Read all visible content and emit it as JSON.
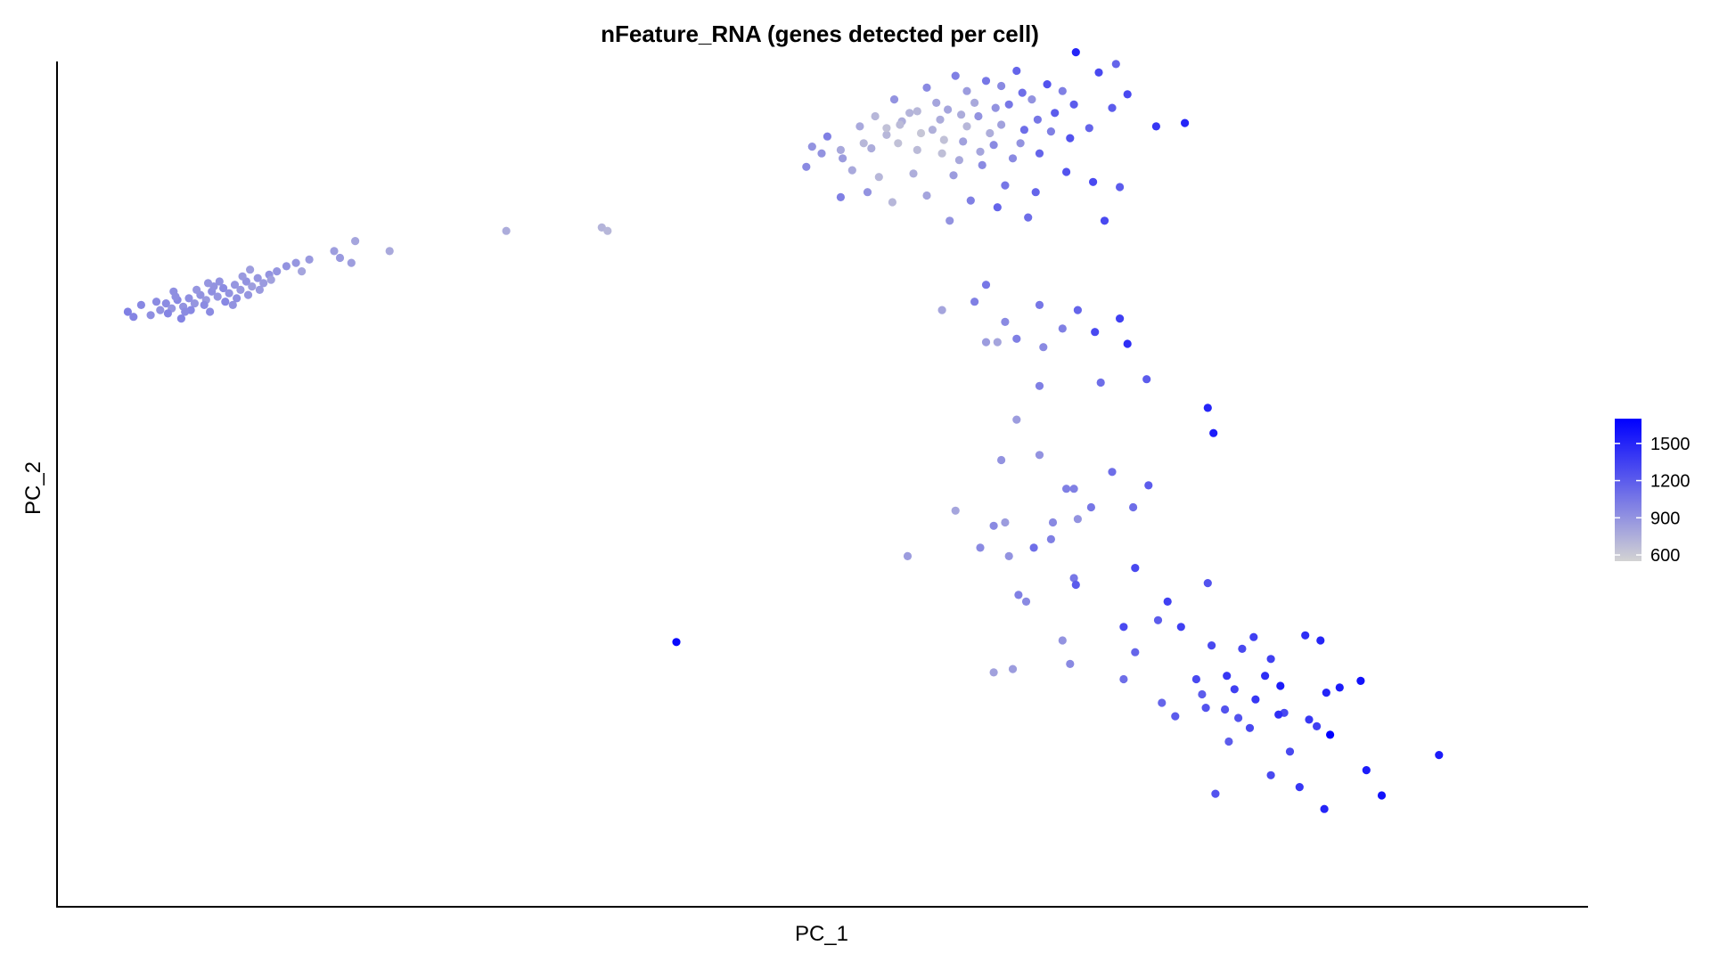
{
  "chart_data": {
    "type": "scatter",
    "title": "nFeature_RNA (genes detected per cell)",
    "xlabel": "PC_1",
    "ylabel": "PC_2",
    "xlim": [
      -30,
      50
    ],
    "ylim": [
      -30,
      20
    ],
    "grid": false,
    "legend": {
      "placement": "right",
      "ticks": [
        600,
        900,
        1200,
        1500
      ],
      "range": [
        550,
        1700
      ]
    },
    "colors": {
      "low": "#d3d3d3",
      "high": "#0000ff"
    },
    "points": [
      [
        -26.3,
        5.2,
        1000
      ],
      [
        -26.0,
        4.9,
        980
      ],
      [
        -25.6,
        5.6,
        960
      ],
      [
        -25.1,
        5.0,
        920
      ],
      [
        -24.6,
        5.3,
        900
      ],
      [
        -24.3,
        5.7,
        940
      ],
      [
        -24.0,
        5.4,
        880
      ],
      [
        -23.7,
        5.9,
        960
      ],
      [
        -23.4,
        5.5,
        900
      ],
      [
        -23.1,
        6.0,
        920
      ],
      [
        -22.8,
        5.7,
        880
      ],
      [
        -22.5,
        6.2,
        900
      ],
      [
        -22.2,
        5.9,
        860
      ],
      [
        -21.9,
        6.4,
        920
      ],
      [
        -21.6,
        6.1,
        880
      ],
      [
        -21.3,
        6.6,
        940
      ],
      [
        -21.0,
        6.3,
        900
      ],
      [
        -20.7,
        6.8,
        880
      ],
      [
        -20.4,
        6.5,
        860
      ],
      [
        -20.1,
        7.0,
        900
      ],
      [
        -19.8,
        6.7,
        840
      ],
      [
        -19.5,
        7.2,
        880
      ],
      [
        -19.2,
        6.9,
        860
      ],
      [
        -18.9,
        7.4,
        900
      ],
      [
        -24.8,
        5.8,
        940
      ],
      [
        -24.2,
        5.1,
        980
      ],
      [
        -23.8,
        6.1,
        920
      ],
      [
        -23.0,
        5.3,
        960
      ],
      [
        -22.3,
        5.6,
        940
      ],
      [
        -21.8,
        6.7,
        900
      ],
      [
        -21.2,
        5.8,
        960
      ],
      [
        -20.6,
        6.0,
        920
      ],
      [
        -20.0,
        6.2,
        880
      ],
      [
        -19.4,
        6.5,
        860
      ],
      [
        -23.5,
        4.8,
        980
      ],
      [
        -22.0,
        5.2,
        940
      ],
      [
        -22.7,
        6.5,
        880
      ],
      [
        -21.5,
        7.0,
        900
      ],
      [
        -20.3,
        7.3,
        860
      ],
      [
        -18.5,
        7.6,
        880
      ],
      [
        -18.0,
        7.9,
        900
      ],
      [
        -17.5,
        8.1,
        880
      ],
      [
        -17.2,
        7.6,
        800
      ],
      [
        -16.8,
        8.3,
        860
      ],
      [
        -15.5,
        8.8,
        840
      ],
      [
        -15.2,
        8.4,
        860
      ],
      [
        -14.6,
        8.1,
        840
      ],
      [
        -14.4,
        9.4,
        800
      ],
      [
        -12.6,
        8.8,
        780
      ],
      [
        -6.5,
        10.0,
        760
      ],
      [
        -1.5,
        10.2,
        720
      ],
      [
        -1.2,
        10.0,
        700
      ],
      [
        -23.9,
        6.4,
        920
      ],
      [
        -23.3,
        5.2,
        940
      ],
      [
        -22.1,
        6.9,
        880
      ],
      [
        -20.8,
        5.6,
        900
      ],
      [
        -19.9,
        7.7,
        840
      ],
      [
        -18.8,
        7.1,
        820
      ],
      [
        9.5,
        15.0,
        900
      ],
      [
        10.3,
        15.6,
        1000
      ],
      [
        11.1,
        14.3,
        850
      ],
      [
        12.0,
        16.2,
        780
      ],
      [
        12.6,
        14.9,
        760
      ],
      [
        13.4,
        15.7,
        700
      ],
      [
        14.2,
        16.5,
        750
      ],
      [
        15.0,
        14.8,
        680
      ],
      [
        15.8,
        16.0,
        740
      ],
      [
        16.6,
        17.2,
        800
      ],
      [
        17.4,
        15.3,
        820
      ],
      [
        18.2,
        16.8,
        900
      ],
      [
        19.0,
        15.1,
        950
      ],
      [
        19.8,
        17.5,
        1050
      ],
      [
        20.6,
        16.0,
        1100
      ],
      [
        21.4,
        14.6,
        1150
      ],
      [
        22.2,
        17.0,
        1200
      ],
      [
        23.0,
        15.5,
        1250
      ],
      [
        13.8,
        17.8,
        900
      ],
      [
        15.5,
        18.5,
        950
      ],
      [
        17.0,
        19.2,
        1000
      ],
      [
        18.6,
        18.9,
        1050
      ],
      [
        20.2,
        19.5,
        1150
      ],
      [
        21.8,
        18.7,
        1250
      ],
      [
        23.3,
        20.6,
        1500
      ],
      [
        24.5,
        19.4,
        1300
      ],
      [
        25.4,
        19.9,
        1150
      ],
      [
        26.0,
        18.1,
        1300
      ],
      [
        27.5,
        16.2,
        1400
      ],
      [
        29.0,
        16.4,
        1500
      ],
      [
        14.6,
        17.0,
        720
      ],
      [
        16.2,
        16.6,
        760
      ],
      [
        18.0,
        17.6,
        780
      ],
      [
        19.4,
        16.3,
        820
      ],
      [
        21.0,
        17.8,
        900
      ],
      [
        22.6,
        18.3,
        1000
      ],
      [
        12.8,
        16.8,
        700
      ],
      [
        14.0,
        15.2,
        650
      ],
      [
        15.2,
        15.8,
        620
      ],
      [
        16.4,
        15.4,
        650
      ],
      [
        17.6,
        16.2,
        700
      ],
      [
        18.8,
        15.8,
        750
      ],
      [
        16.0,
        17.6,
        800
      ],
      [
        17.2,
        14.2,
        780
      ],
      [
        20.4,
        15.2,
        900
      ],
      [
        22.0,
        15.9,
        1000
      ],
      [
        24.0,
        16.1,
        1150
      ],
      [
        25.2,
        17.3,
        1200
      ],
      [
        11.6,
        13.6,
        780
      ],
      [
        13.0,
        13.2,
        700
      ],
      [
        14.8,
        13.4,
        750
      ],
      [
        16.9,
        13.3,
        850
      ],
      [
        18.4,
        13.9,
        950
      ],
      [
        19.6,
        12.7,
        1050
      ],
      [
        21.2,
        12.3,
        1150
      ],
      [
        22.8,
        13.5,
        1250
      ],
      [
        24.2,
        12.9,
        1300
      ],
      [
        25.6,
        12.6,
        1200
      ],
      [
        11.0,
        12.0,
        1000
      ],
      [
        12.4,
        12.3,
        900
      ],
      [
        13.7,
        11.7,
        700
      ],
      [
        15.5,
        12.1,
        800
      ],
      [
        17.8,
        11.8,
        1000
      ],
      [
        19.2,
        11.4,
        1150
      ],
      [
        20.8,
        10.8,
        1100
      ],
      [
        24.8,
        10.6,
        1300
      ],
      [
        16.7,
        10.6,
        900
      ],
      [
        13.4,
        16.1,
        650
      ],
      [
        15.0,
        17.1,
        700
      ],
      [
        17.3,
        16.9,
        760
      ],
      [
        19.1,
        17.3,
        900
      ],
      [
        20.5,
        18.2,
        1100
      ],
      [
        21.3,
        16.6,
        1050
      ],
      [
        23.2,
        17.5,
        1200
      ],
      [
        14.1,
        16.3,
        680
      ],
      [
        16.3,
        14.6,
        660
      ],
      [
        18.3,
        14.7,
        800
      ],
      [
        20.0,
        14.3,
        950
      ],
      [
        12.2,
        15.2,
        700
      ],
      [
        11.0,
        14.8,
        780
      ],
      [
        10.0,
        14.6,
        900
      ],
      [
        9.2,
        13.8,
        950
      ],
      [
        17.6,
        18.3,
        850
      ],
      [
        19.4,
        18.6,
        950
      ],
      [
        18.6,
        6.8,
        1050
      ],
      [
        18.0,
        5.8,
        1000
      ],
      [
        16.3,
        5.3,
        800
      ],
      [
        19.6,
        4.6,
        950
      ],
      [
        21.4,
        5.6,
        1050
      ],
      [
        22.6,
        4.2,
        1000
      ],
      [
        19.2,
        3.4,
        800
      ],
      [
        18.6,
        3.4,
        850
      ],
      [
        20.2,
        3.6,
        1000
      ],
      [
        21.6,
        3.1,
        950
      ],
      [
        23.4,
        5.3,
        1150
      ],
      [
        24.3,
        4.0,
        1300
      ],
      [
        25.6,
        4.8,
        1350
      ],
      [
        26.0,
        3.3,
        1450
      ],
      [
        21.4,
        0.8,
        1000
      ],
      [
        24.6,
        1.0,
        1100
      ],
      [
        27.0,
        1.2,
        1200
      ],
      [
        30.2,
        -0.5,
        1500
      ],
      [
        30.5,
        -2.0,
        1550
      ],
      [
        19.4,
        -3.6,
        900
      ],
      [
        20.2,
        -1.2,
        850
      ],
      [
        21.4,
        -3.3,
        900
      ],
      [
        23.2,
        -5.3,
        1000
      ],
      [
        25.2,
        -4.3,
        1100
      ],
      [
        27.1,
        -5.1,
        1200
      ],
      [
        26.3,
        -6.4,
        1100
      ],
      [
        24.1,
        -6.4,
        1050
      ],
      [
        23.4,
        -7.1,
        900
      ],
      [
        22.1,
        -7.3,
        950
      ],
      [
        22.0,
        -8.3,
        1000
      ],
      [
        21.1,
        -8.8,
        1100
      ],
      [
        22.8,
        -5.3,
        1000
      ],
      [
        19.0,
        -7.5,
        950
      ],
      [
        19.6,
        -7.3,
        850
      ],
      [
        19.8,
        -9.3,
        900
      ],
      [
        18.3,
        -8.8,
        950
      ],
      [
        17.0,
        -6.6,
        800
      ],
      [
        14.5,
        -9.3,
        850
      ],
      [
        20.3,
        -11.6,
        1000
      ],
      [
        20.7,
        -12.0,
        950
      ],
      [
        23.2,
        -10.6,
        1050
      ],
      [
        26.4,
        -10.0,
        1300
      ],
      [
        28.1,
        -12.0,
        1350
      ],
      [
        30.2,
        -10.9,
        1250
      ],
      [
        23.3,
        -11.0,
        1200
      ],
      [
        25.8,
        -13.5,
        1300
      ],
      [
        27.6,
        -13.1,
        1200
      ],
      [
        28.8,
        -13.5,
        1350
      ],
      [
        30.4,
        -14.6,
        1300
      ],
      [
        32.6,
        -14.1,
        1350
      ],
      [
        35.3,
        -14.0,
        1450
      ],
      [
        36.1,
        -14.3,
        1500
      ],
      [
        34.0,
        -17.0,
        1550
      ],
      [
        38.2,
        -16.7,
        1600
      ],
      [
        31.2,
        -16.4,
        1400
      ],
      [
        33.2,
        -16.4,
        1450
      ],
      [
        29.6,
        -16.6,
        1300
      ],
      [
        31.6,
        -17.2,
        1350
      ],
      [
        32.7,
        -17.8,
        1400
      ],
      [
        34.2,
        -18.6,
        1300
      ],
      [
        30.1,
        -18.3,
        1250
      ],
      [
        29.9,
        -17.5,
        1200
      ],
      [
        31.1,
        -18.4,
        1250
      ],
      [
        36.4,
        -17.4,
        1500
      ],
      [
        37.1,
        -17.1,
        1550
      ],
      [
        32.4,
        -19.5,
        1300
      ],
      [
        31.3,
        -20.3,
        1200
      ],
      [
        34.5,
        -20.9,
        1300
      ],
      [
        35.9,
        -19.4,
        1350
      ],
      [
        33.9,
        -18.7,
        1450
      ],
      [
        30.6,
        -23.4,
        1250
      ],
      [
        33.5,
        -22.3,
        1300
      ],
      [
        35.0,
        -23.0,
        1400
      ],
      [
        36.3,
        -24.3,
        1500
      ],
      [
        39.3,
        -23.5,
        1600
      ],
      [
        42.3,
        -21.1,
        1550
      ],
      [
        38.5,
        -22.0,
        1550
      ],
      [
        36.6,
        -19.9,
        1700
      ],
      [
        32.0,
        -14.8,
        1300
      ],
      [
        33.5,
        -15.4,
        1350
      ],
      [
        31.8,
        -18.9,
        1250
      ],
      [
        28.5,
        -18.8,
        1200
      ],
      [
        27.8,
        -18.0,
        1150
      ],
      [
        35.5,
        -19.0,
        1400
      ],
      [
        20.0,
        -16.0,
        850
      ],
      [
        19.0,
        -16.2,
        820
      ],
      [
        22.6,
        -14.3,
        900
      ],
      [
        23.0,
        -15.7,
        950
      ],
      [
        25.8,
        -16.6,
        1100
      ],
      [
        26.4,
        -15.0,
        1150
      ],
      [
        2.4,
        -14.4,
        1650
      ]
    ]
  }
}
